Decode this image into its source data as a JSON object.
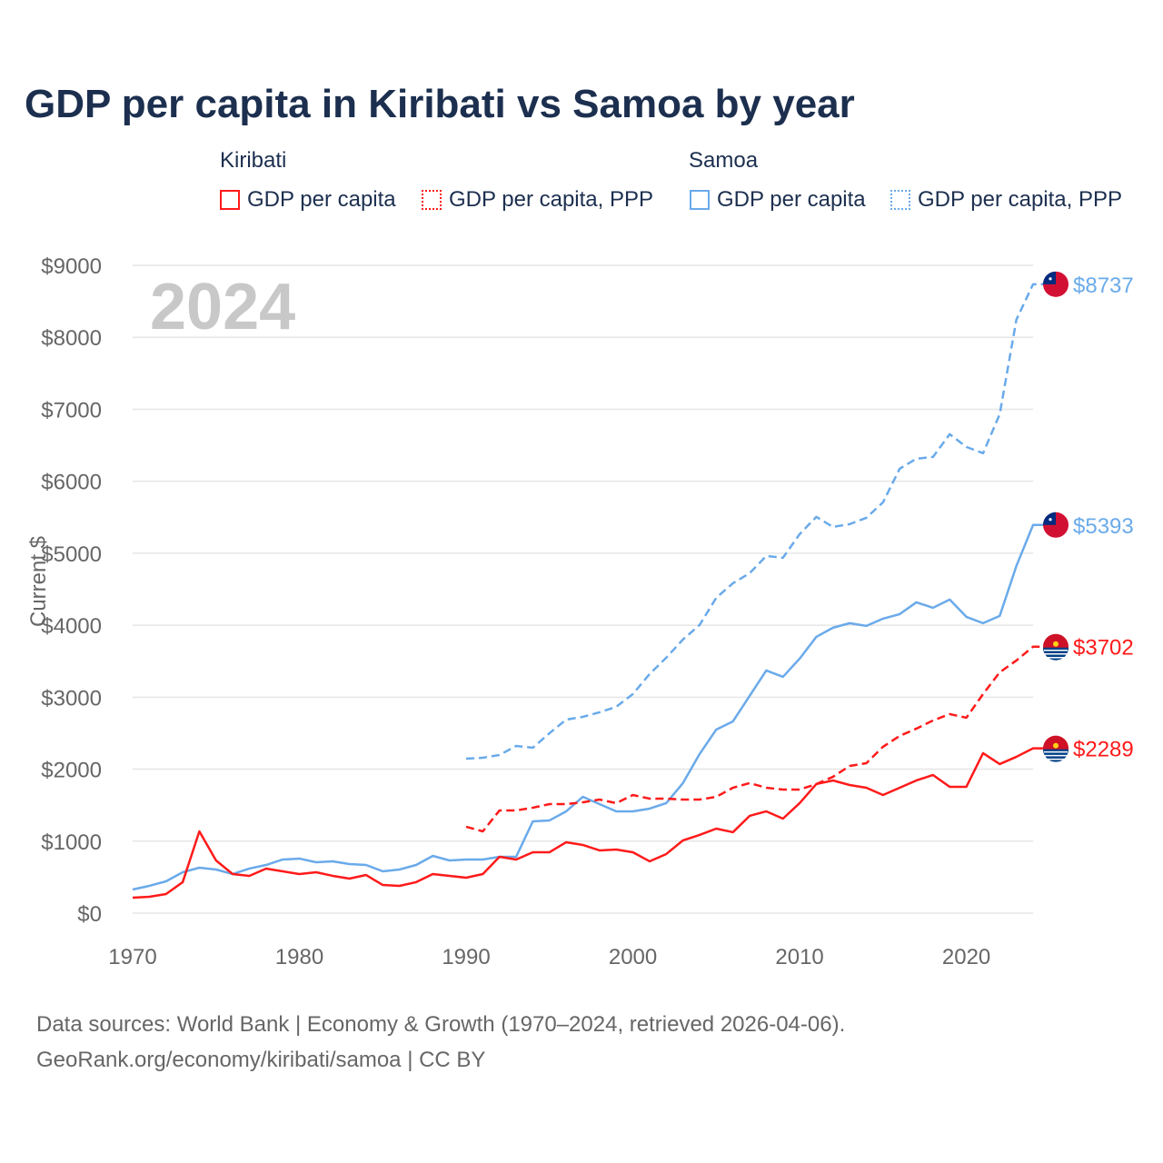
{
  "title": "GDP per capita in Kiribati vs Samoa by year",
  "legend": {
    "groups": [
      {
        "name": "Kiribati",
        "items": [
          "GDP per capita",
          "GDP per capita, PPP"
        ],
        "color": "#ff1a1a"
      },
      {
        "name": "Samoa",
        "items": [
          "GDP per capita",
          "GDP per capita, PPP"
        ],
        "color": "#6aaaea"
      }
    ]
  },
  "year_watermark": "2024",
  "source_lines": [
    "Data sources: World Bank | Economy & Growth (1970–2024, retrieved 2026-04-06).",
    "GeoRank.org/economy/kiribati/samoa | CC BY"
  ],
  "chart_data": {
    "type": "line",
    "title": "GDP per capita in Kiribati vs Samoa by year",
    "xlabel": "",
    "ylabel": "Current $",
    "xlim": [
      1970,
      2024
    ],
    "ylim": [
      0,
      9000
    ],
    "x_ticks": [
      "1970",
      "1980",
      "1990",
      "2000",
      "2010",
      "2020"
    ],
    "y_ticks": [
      "$0",
      "$1000",
      "$2000",
      "$3000",
      "$4000",
      "$5000",
      "$6000",
      "$7000",
      "$8000",
      "$9000"
    ],
    "grid": true,
    "series": [
      {
        "name": "Samoa GDP per capita, PPP",
        "country": "Samoa",
        "color": "#6aaaea",
        "dashed": true,
        "start": 1990,
        "end_label": "$8737",
        "values": [
          2146,
          2159,
          2197,
          2323,
          2298,
          2500,
          2689,
          2727,
          2790,
          2866,
          3043,
          3321,
          3548,
          3801,
          4003,
          4381,
          4583,
          4722,
          4962,
          4937,
          5265,
          5505,
          5366,
          5404,
          5492,
          5707,
          6174,
          6313,
          6338,
          6654,
          6477,
          6389,
          6932,
          8245,
          8737
        ]
      },
      {
        "name": "Samoa GDP per capita",
        "country": "Samoa",
        "color": "#6aaaea",
        "dashed": false,
        "start": 1970,
        "end_label": "$5393",
        "values": [
          328,
          379,
          442,
          568,
          631,
          606,
          543,
          619,
          669,
          745,
          758,
          707,
          720,
          682,
          669,
          581,
          606,
          669,
          795,
          732,
          745,
          745,
          783,
          783,
          1275,
          1288,
          1414,
          1616,
          1515,
          1414,
          1414,
          1452,
          1528,
          1806,
          2210,
          2550,
          2664,
          3018,
          3371,
          3283,
          3535,
          3838,
          3965,
          4028,
          3990,
          4091,
          4154,
          4318,
          4242,
          4356,
          4116,
          4028,
          4129,
          4823,
          5393
        ]
      },
      {
        "name": "Kiribati GDP per capita, PPP",
        "country": "Kiribati",
        "color": "#ff1a1a",
        "dashed": true,
        "start": 1990,
        "end_label": "$3702",
        "values": [
          1200,
          1136,
          1427,
          1427,
          1465,
          1515,
          1515,
          1540,
          1578,
          1528,
          1641,
          1591,
          1591,
          1578,
          1578,
          1616,
          1742,
          1806,
          1742,
          1717,
          1717,
          1793,
          1894,
          2045,
          2083,
          2311,
          2462,
          2563,
          2677,
          2765,
          2715,
          3043,
          3346,
          3510,
          3702
        ]
      },
      {
        "name": "Kiribati GDP per capita",
        "country": "Kiribati",
        "color": "#ff1a1a",
        "dashed": false,
        "start": 1970,
        "end_label": "$2289",
        "values": [
          215,
          227,
          265,
          430,
          1136,
          732,
          543,
          518,
          619,
          581,
          543,
          568,
          518,
          480,
          530,
          391,
          379,
          430,
          543,
          518,
          492,
          543,
          783,
          745,
          846,
          846,
          985,
          947,
          871,
          884,
          846,
          720,
          821,
          1010,
          1086,
          1174,
          1124,
          1351,
          1414,
          1313,
          1528,
          1793,
          1843,
          1780,
          1742,
          1641,
          1742,
          1843,
          1919,
          1755,
          1755,
          2222,
          2071,
          2172,
          2289
        ]
      }
    ]
  }
}
